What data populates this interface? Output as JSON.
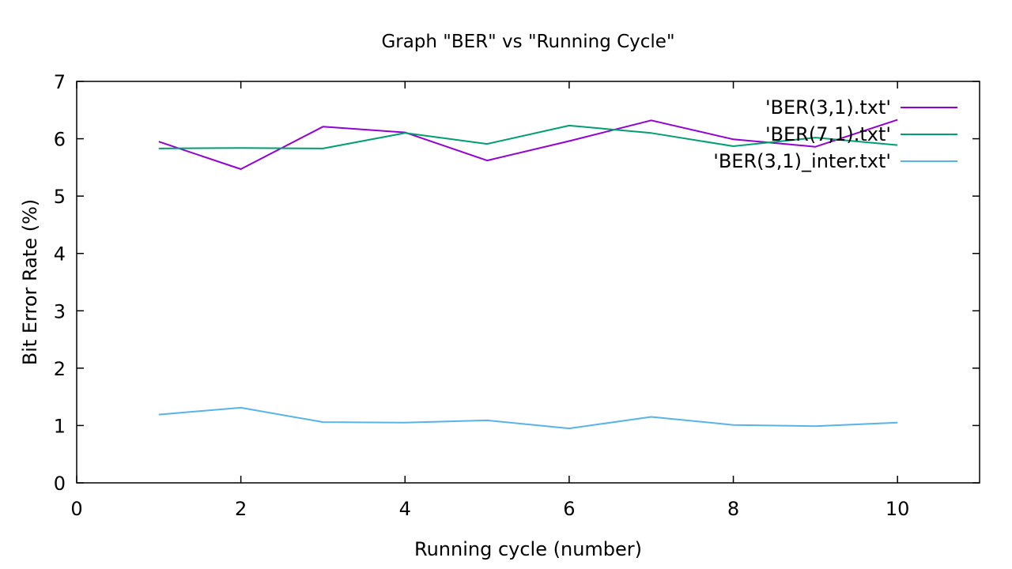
{
  "chart_data": {
    "type": "line",
    "title": "Graph \"BER\" vs \"Running Cycle\"",
    "xlabel": "Running cycle (number)",
    "ylabel": "Bit Error Rate (%)",
    "xlim": [
      0,
      11
    ],
    "ylim": [
      0,
      7
    ],
    "xticks": [
      0,
      2,
      4,
      6,
      8,
      10
    ],
    "yticks": [
      0,
      1,
      2,
      3,
      4,
      5,
      6,
      7
    ],
    "grid": false,
    "legend_position": "top-right",
    "x": [
      1,
      2,
      3,
      4,
      5,
      6,
      7,
      8,
      9,
      10
    ],
    "series": [
      {
        "name": "'BER(3,1).txt'",
        "color": "#9400d3",
        "values": [
          5.95,
          5.47,
          6.21,
          6.11,
          5.62,
          5.96,
          6.32,
          5.99,
          5.86,
          6.33
        ]
      },
      {
        "name": "'BER(7,1).txt'",
        "color": "#009e73",
        "values": [
          5.83,
          5.84,
          5.83,
          6.1,
          5.91,
          6.23,
          6.1,
          5.87,
          6.02,
          5.89
        ]
      },
      {
        "name": "'BER(3,1)_inter.txt'",
        "color": "#56b4e9",
        "values": [
          1.19,
          1.31,
          1.06,
          1.05,
          1.09,
          0.95,
          1.15,
          1.01,
          0.99,
          1.05
        ]
      }
    ]
  }
}
